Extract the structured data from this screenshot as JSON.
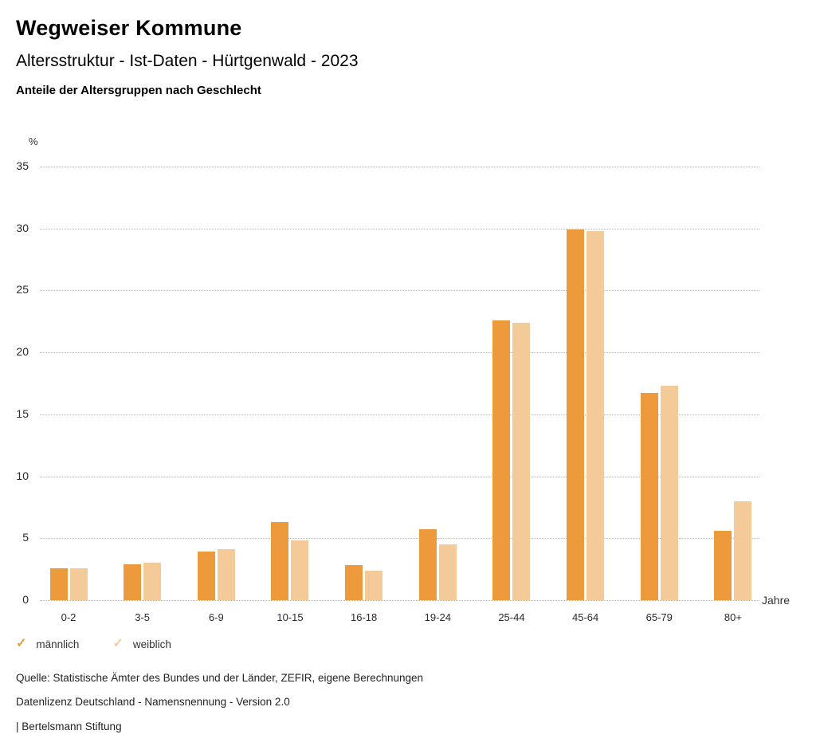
{
  "header": {
    "title": "Wegweiser Kommune",
    "subtitle": "Altersstruktur - Ist-Daten - Hürtgenwald - 2023",
    "chart_heading": "Anteile der Altersgruppen nach Geschlecht"
  },
  "chart_data": {
    "type": "bar",
    "title": "Anteile der Altersgruppen nach Geschlecht",
    "categories": [
      "0-2",
      "3-5",
      "6-9",
      "10-15",
      "16-18",
      "19-24",
      "25-44",
      "45-64",
      "65-79",
      "80+"
    ],
    "series": [
      {
        "name": "männlich",
        "color": "#ED9A3C",
        "values": [
          2.6,
          2.9,
          3.9,
          6.3,
          2.8,
          5.7,
          22.6,
          29.9,
          16.7,
          5.6
        ]
      },
      {
        "name": "weiblich",
        "color": "#F4CB98",
        "values": [
          2.6,
          3.0,
          4.1,
          4.8,
          2.4,
          4.5,
          22.4,
          29.8,
          17.3,
          8.0
        ]
      }
    ],
    "ylabel": "%",
    "xlabel": "Jahre",
    "ylim": [
      0,
      35
    ],
    "yticks": [
      0,
      5,
      10,
      15,
      20,
      25,
      30,
      35
    ],
    "grid": "dotted-horizontal",
    "legend_position": "bottom-left"
  },
  "legend": {
    "check_icon": "✓",
    "items": [
      {
        "label": "männlich",
        "color": "#ED9A3C"
      },
      {
        "label": "weiblich",
        "color": "#F4CB98"
      }
    ]
  },
  "footer": {
    "source": "Quelle: Statistische Ämter des Bundes und der Länder, ZEFIR, eigene Berechnungen",
    "license": "Datenlizenz Deutschland - Namensnennung - Version 2.0",
    "attribution": "| Bertelsmann Stiftung"
  }
}
